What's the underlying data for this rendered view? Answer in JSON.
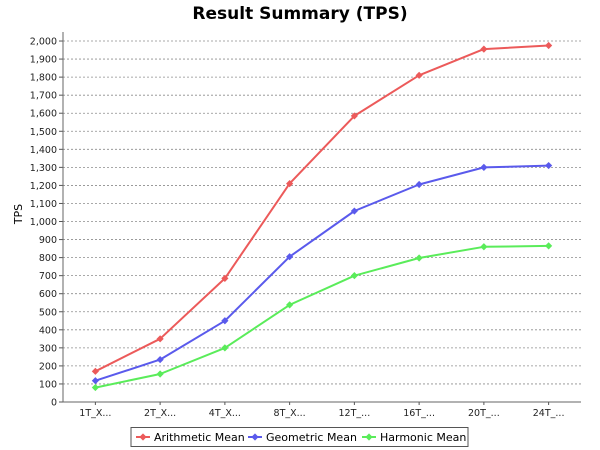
{
  "chart_data": {
    "type": "line",
    "title": "Result Summary (TPS)",
    "ylabel": "TPS",
    "xlabel": "",
    "ylim": [
      0,
      2050
    ],
    "y_ticks": [
      0,
      100,
      200,
      300,
      400,
      500,
      600,
      700,
      800,
      900,
      1000,
      1100,
      1200,
      1300,
      1400,
      1500,
      1600,
      1700,
      1800,
      1900,
      2000
    ],
    "y_tick_labels": [
      "0",
      "100",
      "200",
      "300",
      "400",
      "500",
      "600",
      "700",
      "800",
      "900",
      "1,000",
      "1,100",
      "1,200",
      "1,300",
      "1,400",
      "1,500",
      "1,600",
      "1,700",
      "1,800",
      "1,900",
      "2,000"
    ],
    "categories": [
      "1T_X...",
      "2T_X...",
      "4T_X...",
      "8T_X...",
      "12T_...",
      "16T_...",
      "20T_...",
      "24T_..."
    ],
    "grid": true,
    "legend_position": "bottom",
    "series": [
      {
        "name": "Arithmetic Mean",
        "color": "#ec5a5a",
        "values": [
          170,
          350,
          685,
          1210,
          1585,
          1810,
          1955,
          1975
        ]
      },
      {
        "name": "Geometric Mean",
        "color": "#5a5aec",
        "values": [
          118,
          235,
          450,
          805,
          1058,
          1205,
          1300,
          1310
        ]
      },
      {
        "name": "Harmonic Mean",
        "color": "#5aec5a",
        "values": [
          80,
          155,
          300,
          538,
          700,
          798,
          860,
          865
        ]
      }
    ]
  }
}
